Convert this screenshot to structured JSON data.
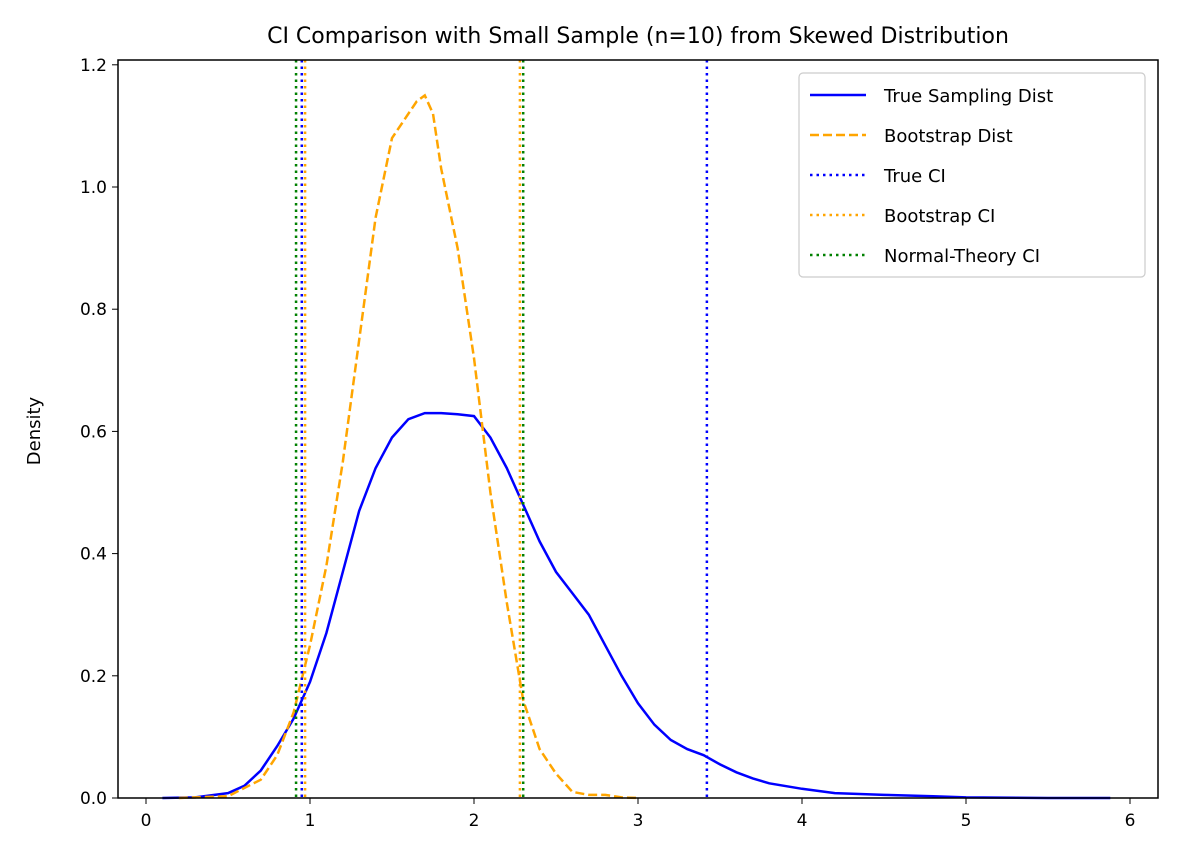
{
  "chart_data": {
    "type": "line",
    "title": "CI Comparison with Small Sample (n=10) from Skewed Distribution",
    "xlabel": "",
    "ylabel": "Density",
    "xlim": [
      -0.17,
      6.16
    ],
    "ylim": [
      0,
      1.21
    ],
    "xticks": [
      0,
      1,
      2,
      3,
      4,
      5,
      6
    ],
    "yticks": [
      0.0,
      0.2,
      0.4,
      0.6,
      0.8,
      1.0,
      1.2
    ],
    "legend_position": "top-right",
    "series": [
      {
        "name": "True Sampling Dist",
        "color": "#0000ff",
        "style": "solid",
        "x": [
          0.1,
          0.3,
          0.5,
          0.6,
          0.7,
          0.8,
          0.9,
          1.0,
          1.1,
          1.2,
          1.3,
          1.4,
          1.5,
          1.6,
          1.7,
          1.8,
          1.9,
          2.0,
          2.1,
          2.2,
          2.3,
          2.4,
          2.5,
          2.6,
          2.7,
          2.8,
          2.9,
          3.0,
          3.1,
          3.2,
          3.3,
          3.4,
          3.5,
          3.6,
          3.7,
          3.8,
          4.0,
          4.2,
          4.5,
          4.8,
          5.0,
          5.5,
          5.88
        ],
        "y": [
          0,
          0.001,
          0.008,
          0.02,
          0.045,
          0.085,
          0.13,
          0.19,
          0.27,
          0.37,
          0.47,
          0.54,
          0.59,
          0.62,
          0.63,
          0.63,
          0.628,
          0.625,
          0.59,
          0.54,
          0.48,
          0.42,
          0.37,
          0.335,
          0.3,
          0.25,
          0.2,
          0.155,
          0.12,
          0.095,
          0.08,
          0.07,
          0.055,
          0.042,
          0.032,
          0.024,
          0.015,
          0.008,
          0.005,
          0.003,
          0.001,
          0,
          0
        ]
      },
      {
        "name": "Bootstrap Dist",
        "color": "#ffa500",
        "style": "dashed",
        "x": [
          0.2,
          0.5,
          0.7,
          0.8,
          0.9,
          1.0,
          1.1,
          1.2,
          1.3,
          1.4,
          1.5,
          1.6,
          1.65,
          1.7,
          1.75,
          1.8,
          1.9,
          2.0,
          2.1,
          2.2,
          2.3,
          2.4,
          2.5,
          2.6,
          2.7,
          2.8,
          2.9,
          3.0
        ],
        "y": [
          0,
          0.003,
          0.03,
          0.07,
          0.14,
          0.25,
          0.38,
          0.55,
          0.75,
          0.95,
          1.08,
          1.12,
          1.14,
          1.15,
          1.12,
          1.03,
          0.9,
          0.72,
          0.5,
          0.32,
          0.16,
          0.08,
          0.04,
          0.01,
          0.005,
          0.005,
          0.001,
          0
        ]
      }
    ],
    "vlines": [
      {
        "name": "True CI",
        "color": "#0000ff",
        "x": [
          0.95,
          3.42
        ]
      },
      {
        "name": "Bootstrap CI",
        "color": "#ffa500",
        "x": [
          0.97,
          2.28
        ]
      },
      {
        "name": "Normal-Theory CI",
        "color": "#008000",
        "x": [
          0.915,
          2.3
        ]
      }
    ]
  }
}
